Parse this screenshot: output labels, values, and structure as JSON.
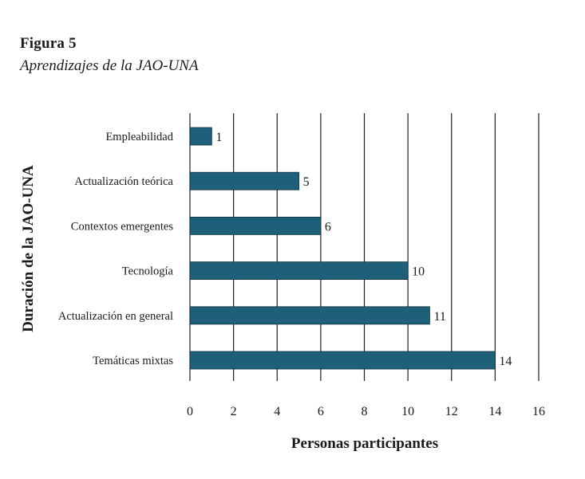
{
  "figure": {
    "label": "Figura 5",
    "title": "Aprendizajes de la JAO-UNA"
  },
  "colors": {
    "bar": "#1e5f7a",
    "grid": "#222222",
    "text": "#1a1a1a"
  },
  "chart_data": {
    "type": "bar",
    "orientation": "horizontal",
    "categories": [
      "Empleabilidad",
      "Actualización teórica",
      "Contextos emergentes",
      "Tecnología",
      "Actualización en general",
      "Temáticas mixtas"
    ],
    "values": [
      1,
      5,
      6,
      10,
      11,
      14
    ],
    "data_labels": [
      "1",
      "5",
      "6",
      "10",
      "11",
      "14"
    ],
    "xlabel": "Personas participantes",
    "ylabel": "Duración de la JAO-UNA",
    "xlim": [
      0,
      16
    ],
    "xticks": [
      0,
      2,
      4,
      6,
      8,
      10,
      12,
      14,
      16
    ],
    "xtick_labels": [
      "0",
      "2",
      "4",
      "6",
      "8",
      "10",
      "12",
      "14",
      "16"
    ],
    "grid": "vertical",
    "legend": "none"
  }
}
